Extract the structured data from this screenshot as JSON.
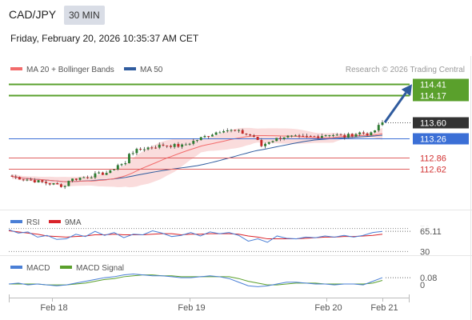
{
  "header": {
    "symbol": "CAD/JPY",
    "timeframe": "30 MIN",
    "datetime": "Friday, February 20, 2026 10:35:37 AM CET"
  },
  "source": "Research © 2026 Trading Central",
  "colors": {
    "ma20": "#f26b6b",
    "bollinger_fill": "#fadcdc",
    "ma50": "#2f5b9e",
    "resistance": "#5aa02c",
    "support": "#e06060",
    "pivot": "#3b6fd6",
    "arrow": "#2f5b9e",
    "rsi": "#4a7fd6",
    "rsi_ma": "#d9232a",
    "macd": "#4a7fd6",
    "macd_signal": "#5aa02c",
    "price_tag": "#333333",
    "candle_up": "#2e7d32",
    "candle_down": "#c62828"
  },
  "chart_data": [
    {
      "type": "candlestick",
      "legend": [
        {
          "label": "MA 20 + Bollinger Bands",
          "color": "#f26b6b"
        },
        {
          "label": "MA 50",
          "color": "#2f5b9e"
        }
      ],
      "x_ticks": [
        "Feb 18",
        "Feb 19",
        "Feb 20",
        "Feb 21"
      ],
      "ylim": [
        111.75,
        114.55
      ],
      "levels": [
        {
          "value": 114.41,
          "label": "114.41",
          "role": "resistance"
        },
        {
          "value": 114.17,
          "label": "114.17",
          "role": "resistance"
        },
        {
          "value": 113.26,
          "label": "113.26",
          "role": "pivot"
        },
        {
          "value": 112.86,
          "label": "112.86",
          "role": "support"
        },
        {
          "value": 112.62,
          "label": "112.62",
          "role": "support"
        }
      ],
      "last_price": {
        "value": 113.6,
        "label": "113.60"
      },
      "target_arrow": {
        "from": 113.6,
        "to": 114.41
      },
      "price_path": [
        {
          "t": 0,
          "v": 112.45
        },
        {
          "t": 6,
          "v": 112.36
        },
        {
          "t": 10,
          "v": 112.3
        },
        {
          "t": 14,
          "v": 112.25
        },
        {
          "t": 15,
          "v": 112.38
        },
        {
          "t": 20,
          "v": 112.45
        },
        {
          "t": 26,
          "v": 112.55
        },
        {
          "t": 28,
          "v": 112.7
        },
        {
          "t": 30,
          "v": 112.72
        },
        {
          "t": 31,
          "v": 112.95
        },
        {
          "t": 35,
          "v": 113.05
        },
        {
          "t": 40,
          "v": 113.12
        },
        {
          "t": 45,
          "v": 113.1
        },
        {
          "t": 48,
          "v": 113.2
        },
        {
          "t": 52,
          "v": 113.33
        },
        {
          "t": 56,
          "v": 113.45
        },
        {
          "t": 60,
          "v": 113.4
        },
        {
          "t": 64,
          "v": 113.3
        },
        {
          "t": 66,
          "v": 113.1
        },
        {
          "t": 68,
          "v": 113.2
        },
        {
          "t": 72,
          "v": 113.3
        },
        {
          "t": 76,
          "v": 113.28
        },
        {
          "t": 80,
          "v": 113.3
        },
        {
          "t": 84,
          "v": 113.35
        },
        {
          "t": 88,
          "v": 113.3
        },
        {
          "t": 92,
          "v": 113.38
        },
        {
          "t": 95,
          "v": 113.35
        },
        {
          "t": 98,
          "v": 113.6
        }
      ],
      "candle_count": 99
    },
    {
      "type": "line",
      "legend": [
        {
          "label": "RSI",
          "color": "#4a7fd6"
        },
        {
          "label": "9MA",
          "color": "#d9232a"
        }
      ],
      "y_ticks": [
        "70",
        "30"
      ],
      "ylim": [
        25,
        75
      ],
      "last_value": {
        "value": 65.11,
        "label": "65.11"
      },
      "series": [
        {
          "name": "RSI",
          "values": [
            68,
            62,
            64,
            55,
            58,
            51,
            52,
            60,
            56,
            65,
            58,
            63,
            54,
            60,
            59,
            66,
            62,
            56,
            58,
            63,
            57,
            64,
            61,
            63,
            58,
            48,
            52,
            46,
            57,
            53,
            52,
            55,
            54,
            57,
            55,
            58,
            55,
            58,
            63,
            65
          ]
        },
        {
          "name": "9MA",
          "values": [
            66,
            64,
            62,
            60,
            57,
            56,
            55,
            56,
            57,
            59,
            59,
            60,
            59,
            59,
            59,
            60,
            61,
            61,
            59,
            60,
            60,
            61,
            61,
            61,
            60,
            57,
            55,
            52,
            52,
            52,
            52,
            53,
            54,
            55,
            55,
            56,
            56,
            57,
            58,
            60
          ]
        }
      ]
    },
    {
      "type": "line",
      "legend": [
        {
          "label": "MACD",
          "color": "#4a7fd6"
        },
        {
          "label": "MACD Signal",
          "color": "#5aa02c"
        }
      ],
      "y_ticks": [
        "0"
      ],
      "ylim": [
        -0.14,
        0.16
      ],
      "last_value": {
        "value": 0.08,
        "label": "0.08"
      },
      "series": [
        {
          "name": "MACD",
          "values": [
            0.01,
            0.02,
            0.0,
            0.01,
            0.0,
            -0.01,
            0.0,
            0.02,
            0.04,
            0.06,
            0.08,
            0.09,
            0.11,
            0.12,
            0.11,
            0.1,
            0.1,
            0.09,
            0.08,
            0.08,
            0.09,
            0.1,
            0.09,
            0.07,
            0.03,
            -0.01,
            -0.02,
            -0.01,
            0.01,
            0.03,
            0.03,
            0.02,
            0.01,
            0.01,
            0.0,
            0.01,
            0.01,
            0.0,
            0.04,
            0.08
          ]
        },
        {
          "name": "MACD Signal",
          "values": [
            0.01,
            0.01,
            0.01,
            0.01,
            0.0,
            0.0,
            0.0,
            0.01,
            0.02,
            0.04,
            0.06,
            0.07,
            0.09,
            0.1,
            0.11,
            0.11,
            0.1,
            0.1,
            0.09,
            0.09,
            0.09,
            0.09,
            0.09,
            0.09,
            0.07,
            0.04,
            0.02,
            0.0,
            0.0,
            0.01,
            0.02,
            0.02,
            0.02,
            0.01,
            0.01,
            0.01,
            0.01,
            0.01,
            0.02,
            0.05
          ]
        }
      ]
    }
  ]
}
